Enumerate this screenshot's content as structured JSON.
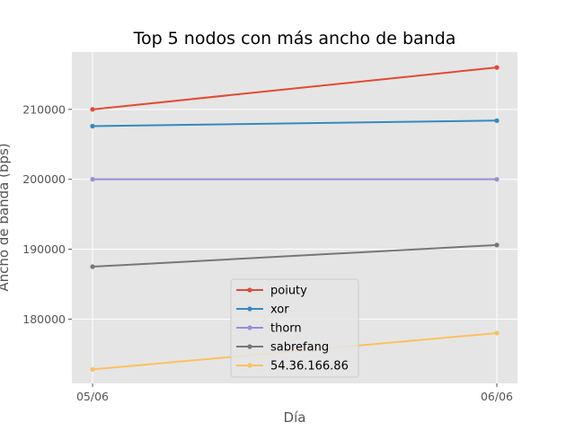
{
  "chart_data": {
    "type": "line",
    "title": "Top 5 nodos con más ancho de banda",
    "xlabel": "Día",
    "ylabel": "Ancho de banda (bps)",
    "categories": [
      "05/06",
      "06/06"
    ],
    "ylim": [
      170800,
      218200
    ],
    "yticks": [
      180000,
      190000,
      200000,
      210000
    ],
    "ytick_labels": [
      "180000",
      "190000",
      "200000",
      "210000"
    ],
    "grid": true,
    "legend_position": "lower center",
    "series": [
      {
        "name": "poiuty",
        "color": "#E24A33",
        "values": [
          210000,
          216000
        ]
      },
      {
        "name": "xor",
        "color": "#348ABD",
        "values": [
          207600,
          208400
        ]
      },
      {
        "name": "thorn",
        "color": "#988ED5",
        "values": [
          200000,
          200000
        ]
      },
      {
        "name": "sabrefang",
        "color": "#777777",
        "values": [
          187500,
          190600
        ]
      },
      {
        "name": "54.36.166.86",
        "color": "#FBC15E",
        "values": [
          172800,
          178000
        ]
      }
    ]
  }
}
